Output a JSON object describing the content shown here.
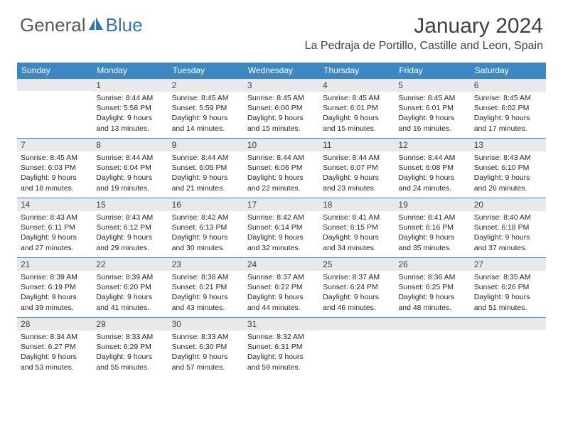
{
  "brand": {
    "part1": "General",
    "part2": "Blue"
  },
  "colors": {
    "header_bg": "#3b88c5",
    "daynum_bg": "#e9e9e9",
    "border_top": "#3b88c5",
    "text_main": "#404040",
    "logo_gray": "#595959",
    "logo_blue": "#2f78b5"
  },
  "title": "January 2024",
  "location": "La Pedraja de Portillo, Castille and Leon, Spain",
  "weekdays": [
    "Sunday",
    "Monday",
    "Tuesday",
    "Wednesday",
    "Thursday",
    "Friday",
    "Saturday"
  ],
  "weeks": [
    [
      {
        "n": "",
        "lines": []
      },
      {
        "n": "1",
        "lines": [
          "Sunrise: 8:44 AM",
          "Sunset: 5:58 PM",
          "Daylight: 9 hours",
          "and 13 minutes."
        ]
      },
      {
        "n": "2",
        "lines": [
          "Sunrise: 8:45 AM",
          "Sunset: 5:59 PM",
          "Daylight: 9 hours",
          "and 14 minutes."
        ]
      },
      {
        "n": "3",
        "lines": [
          "Sunrise: 8:45 AM",
          "Sunset: 6:00 PM",
          "Daylight: 9 hours",
          "and 15 minutes."
        ]
      },
      {
        "n": "4",
        "lines": [
          "Sunrise: 8:45 AM",
          "Sunset: 6:01 PM",
          "Daylight: 9 hours",
          "and 15 minutes."
        ]
      },
      {
        "n": "5",
        "lines": [
          "Sunrise: 8:45 AM",
          "Sunset: 6:01 PM",
          "Daylight: 9 hours",
          "and 16 minutes."
        ]
      },
      {
        "n": "6",
        "lines": [
          "Sunrise: 8:45 AM",
          "Sunset: 6:02 PM",
          "Daylight: 9 hours",
          "and 17 minutes."
        ]
      }
    ],
    [
      {
        "n": "7",
        "lines": [
          "Sunrise: 8:45 AM",
          "Sunset: 6:03 PM",
          "Daylight: 9 hours",
          "and 18 minutes."
        ]
      },
      {
        "n": "8",
        "lines": [
          "Sunrise: 8:44 AM",
          "Sunset: 6:04 PM",
          "Daylight: 9 hours",
          "and 19 minutes."
        ]
      },
      {
        "n": "9",
        "lines": [
          "Sunrise: 8:44 AM",
          "Sunset: 6:05 PM",
          "Daylight: 9 hours",
          "and 21 minutes."
        ]
      },
      {
        "n": "10",
        "lines": [
          "Sunrise: 8:44 AM",
          "Sunset: 6:06 PM",
          "Daylight: 9 hours",
          "and 22 minutes."
        ]
      },
      {
        "n": "11",
        "lines": [
          "Sunrise: 8:44 AM",
          "Sunset: 6:07 PM",
          "Daylight: 9 hours",
          "and 23 minutes."
        ]
      },
      {
        "n": "12",
        "lines": [
          "Sunrise: 8:44 AM",
          "Sunset: 6:08 PM",
          "Daylight: 9 hours",
          "and 24 minutes."
        ]
      },
      {
        "n": "13",
        "lines": [
          "Sunrise: 8:43 AM",
          "Sunset: 6:10 PM",
          "Daylight: 9 hours",
          "and 26 minutes."
        ]
      }
    ],
    [
      {
        "n": "14",
        "lines": [
          "Sunrise: 8:43 AM",
          "Sunset: 6:11 PM",
          "Daylight: 9 hours",
          "and 27 minutes."
        ]
      },
      {
        "n": "15",
        "lines": [
          "Sunrise: 8:43 AM",
          "Sunset: 6:12 PM",
          "Daylight: 9 hours",
          "and 29 minutes."
        ]
      },
      {
        "n": "16",
        "lines": [
          "Sunrise: 8:42 AM",
          "Sunset: 6:13 PM",
          "Daylight: 9 hours",
          "and 30 minutes."
        ]
      },
      {
        "n": "17",
        "lines": [
          "Sunrise: 8:42 AM",
          "Sunset: 6:14 PM",
          "Daylight: 9 hours",
          "and 32 minutes."
        ]
      },
      {
        "n": "18",
        "lines": [
          "Sunrise: 8:41 AM",
          "Sunset: 6:15 PM",
          "Daylight: 9 hours",
          "and 34 minutes."
        ]
      },
      {
        "n": "19",
        "lines": [
          "Sunrise: 8:41 AM",
          "Sunset: 6:16 PM",
          "Daylight: 9 hours",
          "and 35 minutes."
        ]
      },
      {
        "n": "20",
        "lines": [
          "Sunrise: 8:40 AM",
          "Sunset: 6:18 PM",
          "Daylight: 9 hours",
          "and 37 minutes."
        ]
      }
    ],
    [
      {
        "n": "21",
        "lines": [
          "Sunrise: 8:39 AM",
          "Sunset: 6:19 PM",
          "Daylight: 9 hours",
          "and 39 minutes."
        ]
      },
      {
        "n": "22",
        "lines": [
          "Sunrise: 8:39 AM",
          "Sunset: 6:20 PM",
          "Daylight: 9 hours",
          "and 41 minutes."
        ]
      },
      {
        "n": "23",
        "lines": [
          "Sunrise: 8:38 AM",
          "Sunset: 6:21 PM",
          "Daylight: 9 hours",
          "and 43 minutes."
        ]
      },
      {
        "n": "24",
        "lines": [
          "Sunrise: 8:37 AM",
          "Sunset: 6:22 PM",
          "Daylight: 9 hours",
          "and 44 minutes."
        ]
      },
      {
        "n": "25",
        "lines": [
          "Sunrise: 8:37 AM",
          "Sunset: 6:24 PM",
          "Daylight: 9 hours",
          "and 46 minutes."
        ]
      },
      {
        "n": "26",
        "lines": [
          "Sunrise: 8:36 AM",
          "Sunset: 6:25 PM",
          "Daylight: 9 hours",
          "and 48 minutes."
        ]
      },
      {
        "n": "27",
        "lines": [
          "Sunrise: 8:35 AM",
          "Sunset: 6:26 PM",
          "Daylight: 9 hours",
          "and 51 minutes."
        ]
      }
    ],
    [
      {
        "n": "28",
        "lines": [
          "Sunrise: 8:34 AM",
          "Sunset: 6:27 PM",
          "Daylight: 9 hours",
          "and 53 minutes."
        ]
      },
      {
        "n": "29",
        "lines": [
          "Sunrise: 8:33 AM",
          "Sunset: 6:29 PM",
          "Daylight: 9 hours",
          "and 55 minutes."
        ]
      },
      {
        "n": "30",
        "lines": [
          "Sunrise: 8:33 AM",
          "Sunset: 6:30 PM",
          "Daylight: 9 hours",
          "and 57 minutes."
        ]
      },
      {
        "n": "31",
        "lines": [
          "Sunrise: 8:32 AM",
          "Sunset: 6:31 PM",
          "Daylight: 9 hours",
          "and 59 minutes."
        ]
      },
      {
        "n": "",
        "lines": []
      },
      {
        "n": "",
        "lines": []
      },
      {
        "n": "",
        "lines": []
      }
    ]
  ]
}
